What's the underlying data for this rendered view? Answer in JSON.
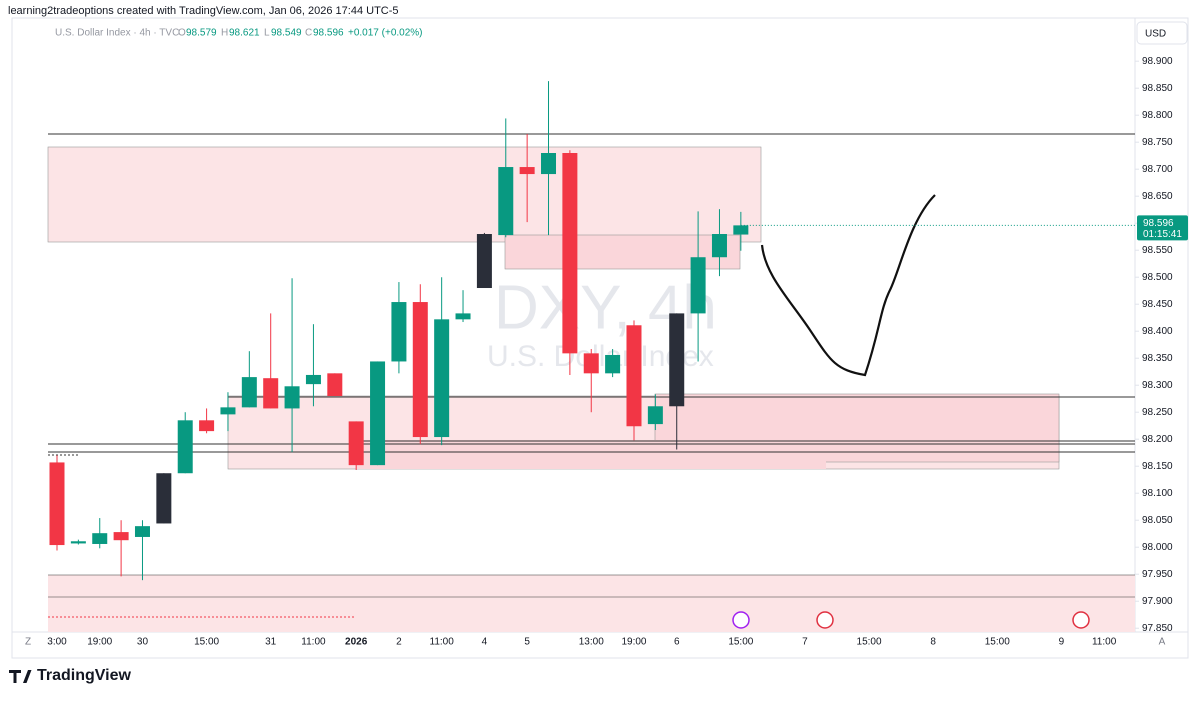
{
  "header": {
    "credit": "learning2tradeoptions created with TradingView.com, Jan 06, 2026 17:44 UTC-5",
    "symbol": "U.S. Dollar Index · 4h · TVC",
    "open_label": "O",
    "high_label": "H",
    "low_label": "L",
    "close_label": "C",
    "change": "+0.017 (+0.02%)",
    "currency": "USD",
    "watermark_symbol": "DXY, 4h",
    "watermark_name": "U.S. Dollar Index",
    "countdown": "01:15:41",
    "brand": "TradingView",
    "zoom_button": "Z",
    "auto_button": "A"
  },
  "chart_data": {
    "type": "candlestick",
    "categories": [
      "3:00",
      null,
      "19:00",
      null,
      "30",
      null,
      null,
      "15:00",
      null,
      null,
      "31",
      null,
      "11:00",
      null,
      "2026",
      null,
      "2",
      null,
      "11:00",
      null,
      "4",
      null,
      "5",
      null,
      null,
      "13:00",
      null,
      "19:00",
      null,
      "6",
      null,
      null,
      "15:00",
      null,
      null,
      "7",
      null,
      null,
      "15:00",
      null,
      null,
      "8",
      null,
      null,
      "15:00",
      null,
      null,
      "9",
      null,
      "11:00",
      null
    ],
    "open": [
      98.157,
      98.007,
      98.006,
      98.028,
      98.019,
      98.044,
      98.137,
      98.235,
      98.246,
      98.259,
      98.313,
      98.257,
      98.302,
      98.322,
      98.233,
      98.152,
      98.344,
      98.454,
      98.204,
      98.422,
      98.48,
      98.578,
      98.704,
      98.691,
      98.73,
      98.359,
      98.322,
      98.411,
      98.228,
      98.261,
      98.433,
      98.537,
      98.579,
      null,
      null,
      null,
      null,
      null,
      null,
      null,
      null,
      null,
      null,
      null,
      null,
      null,
      null,
      null,
      null,
      null,
      null
    ],
    "high": [
      98.17,
      98.014,
      98.054,
      98.05,
      98.05,
      98.137,
      98.25,
      98.257,
      98.287,
      98.363,
      98.433,
      98.498,
      98.413,
      98.322,
      98.233,
      98.344,
      98.491,
      98.487,
      98.5,
      98.476,
      98.582,
      98.794,
      98.765,
      98.863,
      98.735,
      98.367,
      98.367,
      98.42,
      98.283,
      98.433,
      98.622,
      98.626,
      98.621,
      null,
      null,
      null,
      null,
      null,
      null,
      null,
      null,
      null,
      null,
      null,
      null,
      null,
      null,
      null,
      null,
      null,
      null
    ],
    "low": [
      97.994,
      98.005,
      97.998,
      97.946,
      97.939,
      98.044,
      98.137,
      98.211,
      98.215,
      98.259,
      98.257,
      98.176,
      98.261,
      98.28,
      98.143,
      98.152,
      98.322,
      98.191,
      98.189,
      98.417,
      98.48,
      98.574,
      98.602,
      98.578,
      98.319,
      98.25,
      98.315,
      98.198,
      98.217,
      98.181,
      98.344,
      98.502,
      98.549,
      null,
      null,
      null,
      null,
      null,
      null,
      null,
      null,
      null,
      null,
      null,
      null,
      null,
      null,
      null,
      null,
      null,
      null
    ],
    "close": [
      98.004,
      98.011,
      98.026,
      98.013,
      98.039,
      98.137,
      98.235,
      98.215,
      98.259,
      98.315,
      98.257,
      98.298,
      98.319,
      98.28,
      98.152,
      98.344,
      98.454,
      98.204,
      98.422,
      98.433,
      98.58,
      98.704,
      98.691,
      98.73,
      98.359,
      98.322,
      98.356,
      98.224,
      98.261,
      98.433,
      98.537,
      98.58,
      98.596,
      null,
      null,
      null,
      null,
      null,
      null,
      null,
      null,
      null,
      null,
      null,
      null,
      null,
      null,
      null,
      null,
      null,
      null
    ],
    "colors": [
      "#f23645",
      "#089981",
      "#089981",
      "#f23645",
      "#089981",
      "#2a2e39",
      "#089981",
      "#f23645",
      "#089981",
      "#089981",
      "#f23645",
      "#089981",
      "#089981",
      "#f23645",
      "#f23645",
      "#089981",
      "#089981",
      "#f23645",
      "#089981",
      "#089981",
      "#2a2e39",
      "#089981",
      "#f23645",
      "#089981",
      "#f23645",
      "#f23645",
      "#089981",
      "#f23645",
      "#089981",
      "#2a2e39",
      "#089981",
      "#089981",
      "#089981",
      null,
      null,
      null,
      null,
      null,
      null,
      null,
      null,
      null,
      null,
      null,
      null,
      null,
      null,
      null,
      null,
      null,
      null
    ],
    "ylim": [
      97.843,
      98.98
    ],
    "yticks": [
      {
        "value": 98.9,
        "label": "98.900"
      },
      {
        "value": 98.85,
        "label": "98.850"
      },
      {
        "value": 98.8,
        "label": "98.800"
      },
      {
        "value": 98.75,
        "label": "98.750"
      },
      {
        "value": 98.7,
        "label": "98.700"
      },
      {
        "value": 98.65,
        "label": "98.650"
      },
      {
        "value": 98.6,
        "label": "98.600"
      },
      {
        "value": 98.55,
        "label": "98.550"
      },
      {
        "value": 98.5,
        "label": "98.500"
      },
      {
        "value": 98.45,
        "label": "98.450"
      },
      {
        "value": 98.4,
        "label": "98.400"
      },
      {
        "value": 98.35,
        "label": "98.350"
      },
      {
        "value": 98.3,
        "label": "98.300"
      },
      {
        "value": 98.25,
        "label": "98.250"
      },
      {
        "value": 98.2,
        "label": "98.200"
      },
      {
        "value": 98.15,
        "label": "98.150"
      },
      {
        "value": 98.1,
        "label": "98.100"
      },
      {
        "value": 98.05,
        "label": "98.050"
      },
      {
        "value": 98.0,
        "label": "98.000"
      },
      {
        "value": 97.95,
        "label": "97.950"
      },
      {
        "value": 97.9,
        "label": "97.900"
      },
      {
        "value": 97.85,
        "label": "97.850"
      }
    ]
  }
}
